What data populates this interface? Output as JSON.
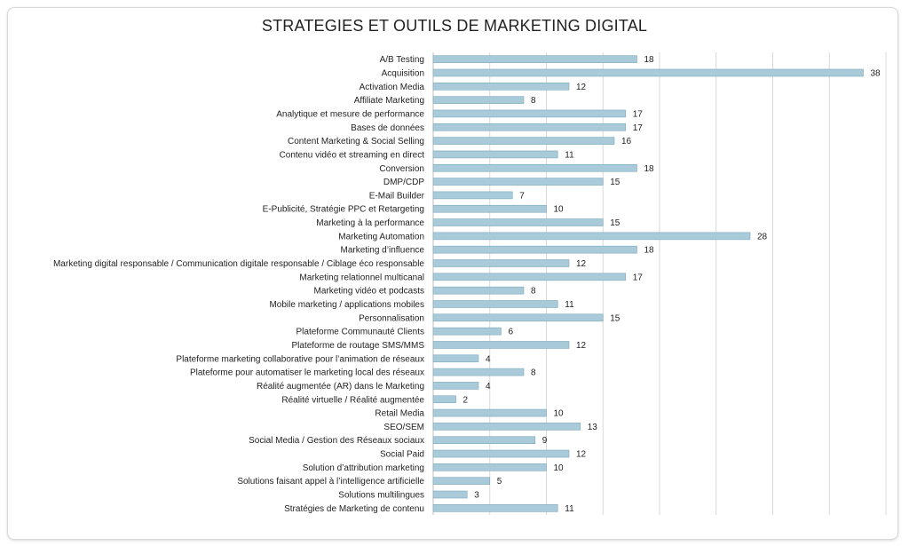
{
  "chart_data": {
    "type": "bar",
    "orientation": "horizontal",
    "title": "STRATEGIES ET OUTILS DE MARKETING DIGITAL",
    "xlabel": "",
    "ylabel": "",
    "xlim": [
      0,
      40
    ],
    "grid": true,
    "bar_color": "#a8cad9",
    "bar_stroke": "#7fa9bd",
    "categories": [
      "A/B Testing",
      "Acquisition",
      "Activation Media",
      "Affiliate Marketing",
      "Analytique et mesure de performance",
      "Bases de données",
      "Content Marketing & Social Selling",
      "Contenu vidéo et streaming en direct",
      "Conversion",
      "DMP/CDP",
      "E-Mail Builder",
      "E-Publicité, Stratégie PPC et Retargeting",
      "Marketing à la performance",
      "Marketing Automation",
      "Marketing d’influence",
      "Marketing digital responsable / Communication digitale responsable / Ciblage éco responsable",
      "Marketing relationnel multicanal",
      "Marketing vidéo et podcasts",
      "Mobile marketing / applications mobiles",
      "Personnalisation",
      "Plateforme Communauté Clients",
      "Plateforme de routage SMS/MMS",
      "Plateforme marketing collaborative pour l’animation de réseaux",
      "Plateforme pour automatiser le marketing local des réseaux",
      "Réalité augmentée (AR) dans le Marketing",
      "Réalité virtuelle / Réalité augmentée",
      "Retail Media",
      "SEO/SEM",
      "Social Media / Gestion des Réseaux sociaux",
      "Social Paid",
      "Solution d’attribution marketing",
      "Solutions faisant appel à l’intelligence artificielle",
      "Solutions multilingues",
      "Stratégies de Marketing de contenu"
    ],
    "values": [
      18,
      38,
      12,
      8,
      17,
      17,
      16,
      11,
      18,
      15,
      7,
      10,
      15,
      28,
      18,
      12,
      17,
      8,
      11,
      15,
      6,
      12,
      4,
      8,
      4,
      2,
      10,
      13,
      9,
      12,
      10,
      5,
      3,
      11
    ]
  }
}
